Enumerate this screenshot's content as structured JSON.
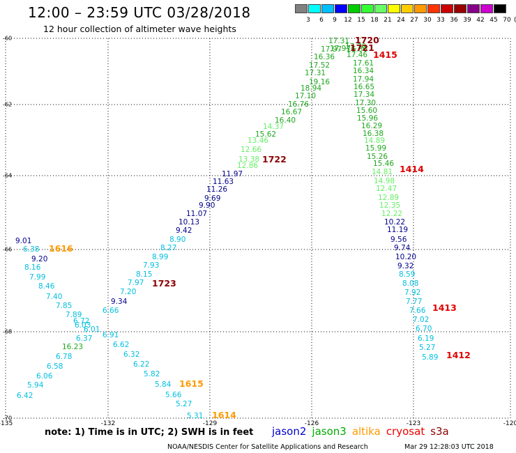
{
  "header": {
    "title": "12:00 – 23:59 UTC 03/28/2018",
    "subtitle": "12 hour collection of altimeter wave heights"
  },
  "colorbar": {
    "unit": "(ft)",
    "ticks": [
      "3",
      "6",
      "9",
      "12",
      "15",
      "18",
      "21",
      "24",
      "27",
      "30",
      "33",
      "36",
      "39",
      "42",
      "45",
      "70"
    ],
    "colors": [
      "#808080",
      "#00ffff",
      "#00bfff",
      "#0000ff",
      "#00cc00",
      "#33ff33",
      "#66ff66",
      "#ffff00",
      "#ffcc00",
      "#ff9900",
      "#ff3300",
      "#cc0000",
      "#990000",
      "#880088",
      "#cc00cc",
      "#000000"
    ]
  },
  "axes": {
    "lat": {
      "range": [
        -60,
        -70
      ],
      "ticks": [
        "-60",
        "-62",
        "-64",
        "-66",
        "-68",
        "-70"
      ]
    },
    "lon": {
      "range": [
        -135,
        -120
      ],
      "ticks": [
        "-135",
        "-132",
        "-129",
        "-126",
        "-123",
        "-120"
      ]
    },
    "grid": "dotted"
  },
  "tracks": [
    {
      "satellite": "jason2",
      "points": [
        [
          "9.01",
          "#00008b"
        ],
        [
          "9.20",
          "#00008b"
        ],
        [
          "9.34",
          "#00008b"
        ]
      ]
    },
    {
      "satellite": "cryosat",
      "points": [
        [
          "6.38",
          "#00bfdf"
        ],
        [
          "8.16",
          "#00bfdf"
        ],
        [
          "7.99",
          "#00bfdf"
        ],
        [
          "8.46",
          "#00bfdf"
        ],
        [
          "7.40",
          "#00bfdf"
        ],
        [
          "7.85",
          "#00bfdf"
        ],
        [
          "7.89",
          "#00bfdf"
        ],
        [
          "6.72",
          "#00bfdf"
        ],
        [
          "6.03",
          "#00bfdf"
        ],
        [
          "6.01",
          "#00bfdf"
        ],
        [
          "6.37",
          "#00bfdf"
        ],
        [
          "16.23",
          "#1fa71f"
        ],
        [
          "6.78",
          "#00bfdf"
        ],
        [
          "6.58",
          "#00bfdf"
        ],
        [
          "6.06",
          "#00bfdf"
        ],
        [
          "5.94",
          "#00bfdf"
        ],
        [
          "6.42",
          "#00bfdf"
        ]
      ]
    },
    {
      "satellite": "jason3",
      "points": [
        [
          "6.66",
          "#00bfdf"
        ],
        [
          "6.91",
          "#00bfdf"
        ],
        [
          "6.62",
          "#00bfdf"
        ],
        [
          "6.32",
          "#00bfdf"
        ],
        [
          "6.22",
          "#00bfdf"
        ],
        [
          "5.82",
          "#00bfdf"
        ],
        [
          "5.84",
          "#00bfdf"
        ],
        [
          "5.66",
          "#00bfdf"
        ],
        [
          "5.27",
          "#00bfdf"
        ],
        [
          "5.31",
          "#00bfdf"
        ]
      ]
    },
    {
      "satellite": "altika",
      "points": [
        [
          "7.20",
          "#00bfdf"
        ],
        [
          "7.97",
          "#00bfdf"
        ],
        [
          "8.15",
          "#00bfdf"
        ],
        [
          "7.93",
          "#00bfdf"
        ],
        [
          "8.99",
          "#00bfdf"
        ],
        [
          "8.27",
          "#00bfdf"
        ],
        [
          "8.90",
          "#00bfdf"
        ],
        [
          "9.42",
          "#00008b"
        ],
        [
          "10.13",
          "#00008b"
        ],
        [
          "11.07",
          "#00008b"
        ],
        [
          "9.90",
          "#00008b"
        ],
        [
          "9.69",
          "#00008b"
        ],
        [
          "11.26",
          "#00008b"
        ],
        [
          "11.63",
          "#00008b"
        ],
        [
          "11.97",
          "#00008b"
        ],
        [
          "12.86",
          "#66ee66"
        ],
        [
          "13.38",
          "#66ee66"
        ],
        [
          "12.66",
          "#66ee66"
        ],
        [
          "13.46",
          "#66ee66"
        ],
        [
          "15.62",
          "#1fa71f"
        ],
        [
          "14.37",
          "#66ee66"
        ],
        [
          "16.40",
          "#1fa71f"
        ],
        [
          "16.67",
          "#1fa71f"
        ],
        [
          "16.76",
          "#1fa71f"
        ],
        [
          "17.10",
          "#1fa71f"
        ],
        [
          "18.94",
          "#1fa71f"
        ],
        [
          "19.16",
          "#1fa71f"
        ],
        [
          "17.31",
          "#1fa71f"
        ],
        [
          "17.52",
          "#1fa71f"
        ],
        [
          "16.36",
          "#1fa71f"
        ],
        [
          "17.97",
          "#1fa71f"
        ],
        [
          "17.97",
          "#1fa71f"
        ],
        [
          "16.30",
          "#1fa71f"
        ],
        [
          "17.31",
          "#1fa71f"
        ]
      ]
    },
    {
      "satellite": "s3a",
      "points": [
        [
          "17.76",
          "#1fa71f"
        ],
        [
          "17.46",
          "#1fa71f"
        ],
        [
          "17.61",
          "#1fa71f"
        ],
        [
          "16.34",
          "#1fa71f"
        ],
        [
          "17.94",
          "#1fa71f"
        ],
        [
          "16.65",
          "#1fa71f"
        ],
        [
          "17.34",
          "#1fa71f"
        ],
        [
          "17.30",
          "#1fa71f"
        ],
        [
          "15.60",
          "#1fa71f"
        ],
        [
          "15.96",
          "#1fa71f"
        ],
        [
          "16.29",
          "#1fa71f"
        ],
        [
          "16.38",
          "#1fa71f"
        ],
        [
          "14.89",
          "#66ee66"
        ],
        [
          "15.99",
          "#1fa71f"
        ],
        [
          "15.26",
          "#1fa71f"
        ],
        [
          "15.46",
          "#1fa71f"
        ],
        [
          "14.81",
          "#66ee66"
        ],
        [
          "14.98",
          "#66ee66"
        ],
        [
          "12.47",
          "#66ee66"
        ],
        [
          "12.89",
          "#66ee66"
        ],
        [
          "12.35",
          "#66ee66"
        ],
        [
          "12.22",
          "#66ee66"
        ],
        [
          "10.22",
          "#00008b"
        ],
        [
          "11.19",
          "#00008b"
        ],
        [
          "9.56",
          "#00008b"
        ],
        [
          "9.74",
          "#00008b"
        ],
        [
          "10.20",
          "#00008b"
        ],
        [
          "9.32",
          "#00008b"
        ],
        [
          "8.59",
          "#00bfdf"
        ],
        [
          "8.08",
          "#00bfdf"
        ],
        [
          "7.92",
          "#00bfdf"
        ],
        [
          "7.77",
          "#00bfdf"
        ],
        [
          "7.66",
          "#00bfdf"
        ],
        [
          "7.02",
          "#00bfdf"
        ],
        [
          "6.70",
          "#00bfdf"
        ],
        [
          "6.19",
          "#00bfdf"
        ],
        [
          "5.27",
          "#00bfdf"
        ],
        [
          "5.89",
          "#00bfdf"
        ]
      ]
    }
  ],
  "time_markers": [
    {
      "label": "1720",
      "color": "#8b0000"
    },
    {
      "label": "1721",
      "color": "#8b0000"
    },
    {
      "label": "1415",
      "color": "#e00000"
    },
    {
      "label": "1722",
      "color": "#8b0000"
    },
    {
      "label": "1414",
      "color": "#e00000"
    },
    {
      "label": "1616",
      "color": "#ff9900"
    },
    {
      "label": "1723",
      "color": "#8b0000"
    },
    {
      "label": "1413",
      "color": "#e00000"
    },
    {
      "label": "1412",
      "color": "#e00000"
    },
    {
      "label": "1615",
      "color": "#ff9900"
    },
    {
      "label": "1614",
      "color": "#ff9900"
    }
  ],
  "notes": {
    "text": "note:  1) Time is in UTC;  2) SWH is in feet"
  },
  "legend": [
    {
      "label": "jason2",
      "color": "#0000cc"
    },
    {
      "label": "jason3",
      "color": "#00aa00"
    },
    {
      "label": "altika",
      "color": "#ff9900"
    },
    {
      "label": "cryosat",
      "color": "#ee0000"
    },
    {
      "label": "s3a",
      "color": "#8b0000"
    }
  ],
  "footer": {
    "credit": "NOAA/NESDIS Center for Satellite Applications and Research",
    "timestamp": "Mar 29 12:28:03 UTC 2018"
  }
}
